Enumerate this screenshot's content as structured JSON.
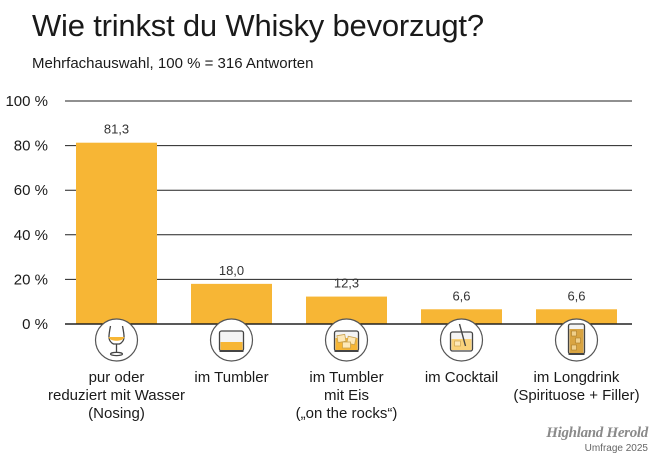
{
  "title": "Wie trinkst du Whisky bevorzugt?",
  "subtitle": "Mehrfachauswahl, 100 % = 316 Antworten",
  "credit": {
    "brand": "Highland Herold",
    "note": "Umfrage 2025"
  },
  "colors": {
    "bar": "#f7b635",
    "axis": "#222222",
    "grid": "#222222",
    "icon_circle": "#ffffff",
    "icon_stroke": "#444444"
  },
  "chart_data": {
    "type": "bar",
    "categories": [
      "pur oder\nreduziert mit Wasser\n(Nosing)",
      "im Tumbler",
      "im Tumbler\nmit Eis\n(„on the rocks“)",
      "im Cocktail",
      "im Longdrink\n(Spirituose + Filler)"
    ],
    "values": [
      81.3,
      18.0,
      12.3,
      6.6,
      6.6
    ],
    "value_labels": [
      "81,3",
      "18,0",
      "12,3",
      "6,6",
      "6,6"
    ],
    "icons": [
      "nosing-glass-icon",
      "tumbler-icon",
      "tumbler-ice-icon",
      "cocktail-glass-icon",
      "longdrink-glass-icon"
    ],
    "ylim": [
      0,
      100
    ],
    "yticks": [
      0,
      20,
      40,
      60,
      80,
      100
    ],
    "ytick_labels": [
      "0 %",
      "20 %",
      "40 %",
      "60 %",
      "80 %",
      "100 %"
    ],
    "grid": true,
    "legend": "none"
  }
}
